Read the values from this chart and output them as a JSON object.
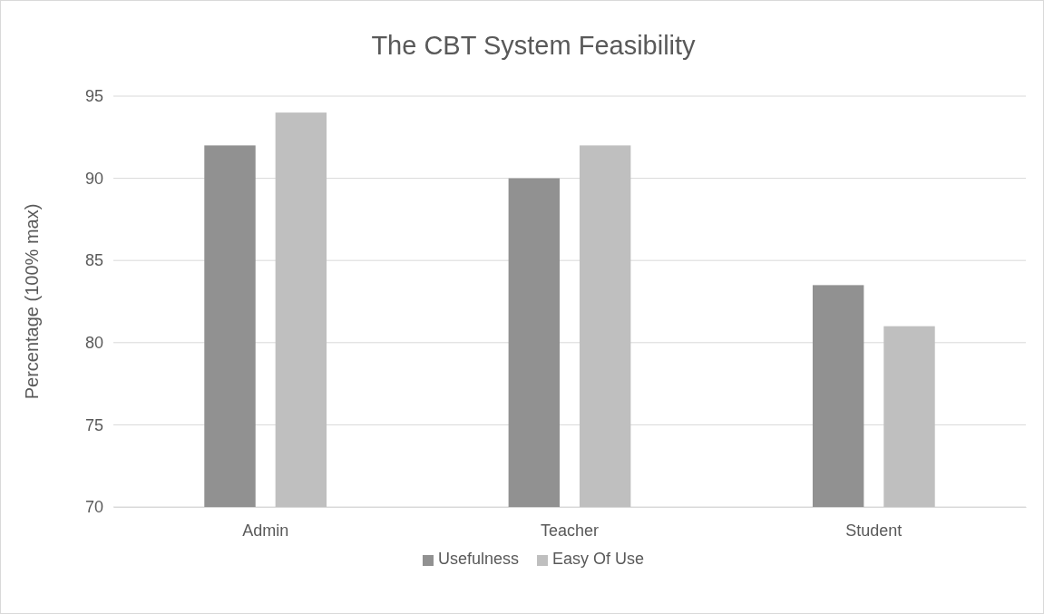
{
  "chart_data": {
    "type": "bar",
    "title": "The CBT System Feasibility",
    "ylabel": "Percentage (100% max)",
    "categories": [
      "Admin",
      "Teacher",
      "Student"
    ],
    "series": [
      {
        "name": "Usefulness",
        "color": "#919191",
        "values": [
          92,
          90,
          83.5
        ]
      },
      {
        "name": "Easy Of Use",
        "color": "#bfbfbf",
        "values": [
          94,
          92,
          81
        ]
      }
    ],
    "ylim": [
      70,
      95
    ],
    "yticks": [
      70,
      75,
      80,
      85,
      90,
      95
    ],
    "grid": "y",
    "legend": "bottom"
  }
}
